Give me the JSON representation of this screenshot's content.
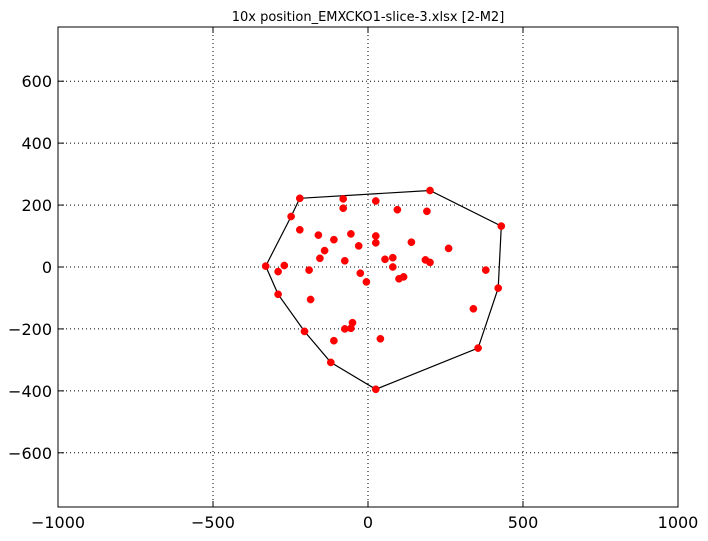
{
  "chart_data": {
    "type": "scatter",
    "title": "10x position_EMXCKO1-slice-3.xlsx   [2-M2]",
    "xlabel": "",
    "ylabel": "",
    "xlim": [
      -1000,
      1000
    ],
    "ylim": [
      -775,
      775
    ],
    "xticks": [
      -1000,
      -500,
      0,
      500,
      1000
    ],
    "yticks": [
      -600,
      -400,
      -200,
      0,
      200,
      400,
      600
    ],
    "xtick_labels": [
      "−1000",
      "−500",
      "0",
      "500",
      "1000"
    ],
    "ytick_labels": [
      "−600",
      "−400",
      "−200",
      "0",
      "200",
      "400",
      "600"
    ],
    "grid": true,
    "grid_style": "dotted",
    "point_color": "#ff0000",
    "hull_color": "#000000",
    "points": [
      [
        -220,
        222
      ],
      [
        200,
        247
      ],
      [
        430,
        132
      ],
      [
        -248,
        163
      ],
      [
        -80,
        220
      ],
      [
        25,
        213
      ],
      [
        -80,
        190
      ],
      [
        95,
        185
      ],
      [
        190,
        180
      ],
      [
        -220,
        120
      ],
      [
        -160,
        103
      ],
      [
        -55,
        107
      ],
      [
        25,
        100
      ],
      [
        -110,
        88
      ],
      [
        25,
        78
      ],
      [
        140,
        80
      ],
      [
        -30,
        68
      ],
      [
        260,
        60
      ],
      [
        -140,
        53
      ],
      [
        -155,
        28
      ],
      [
        -75,
        20
      ],
      [
        55,
        25
      ],
      [
        80,
        30
      ],
      [
        185,
        23
      ],
      [
        200,
        15
      ],
      [
        -270,
        5
      ],
      [
        -330,
        3
      ],
      [
        80,
        0
      ],
      [
        -190,
        -10
      ],
      [
        -290,
        -15
      ],
      [
        380,
        -10
      ],
      [
        -25,
        -20
      ],
      [
        115,
        -32
      ],
      [
        100,
        -38
      ],
      [
        -5,
        -48
      ],
      [
        420,
        -68
      ],
      [
        -290,
        -88
      ],
      [
        -185,
        -105
      ],
      [
        340,
        -135
      ],
      [
        -50,
        -180
      ],
      [
        -75,
        -200
      ],
      [
        -55,
        -198
      ],
      [
        -205,
        -208
      ],
      [
        -110,
        -238
      ],
      [
        40,
        -232
      ],
      [
        355,
        -262
      ],
      [
        -120,
        -308
      ],
      [
        25,
        -395
      ]
    ],
    "hull": [
      [
        -220,
        222
      ],
      [
        200,
        247
      ],
      [
        430,
        132
      ],
      [
        420,
        -68
      ],
      [
        355,
        -262
      ],
      [
        25,
        -395
      ],
      [
        -120,
        -308
      ],
      [
        -205,
        -208
      ],
      [
        -290,
        -88
      ],
      [
        -330,
        3
      ],
      [
        -248,
        163
      ],
      [
        -220,
        222
      ]
    ]
  }
}
